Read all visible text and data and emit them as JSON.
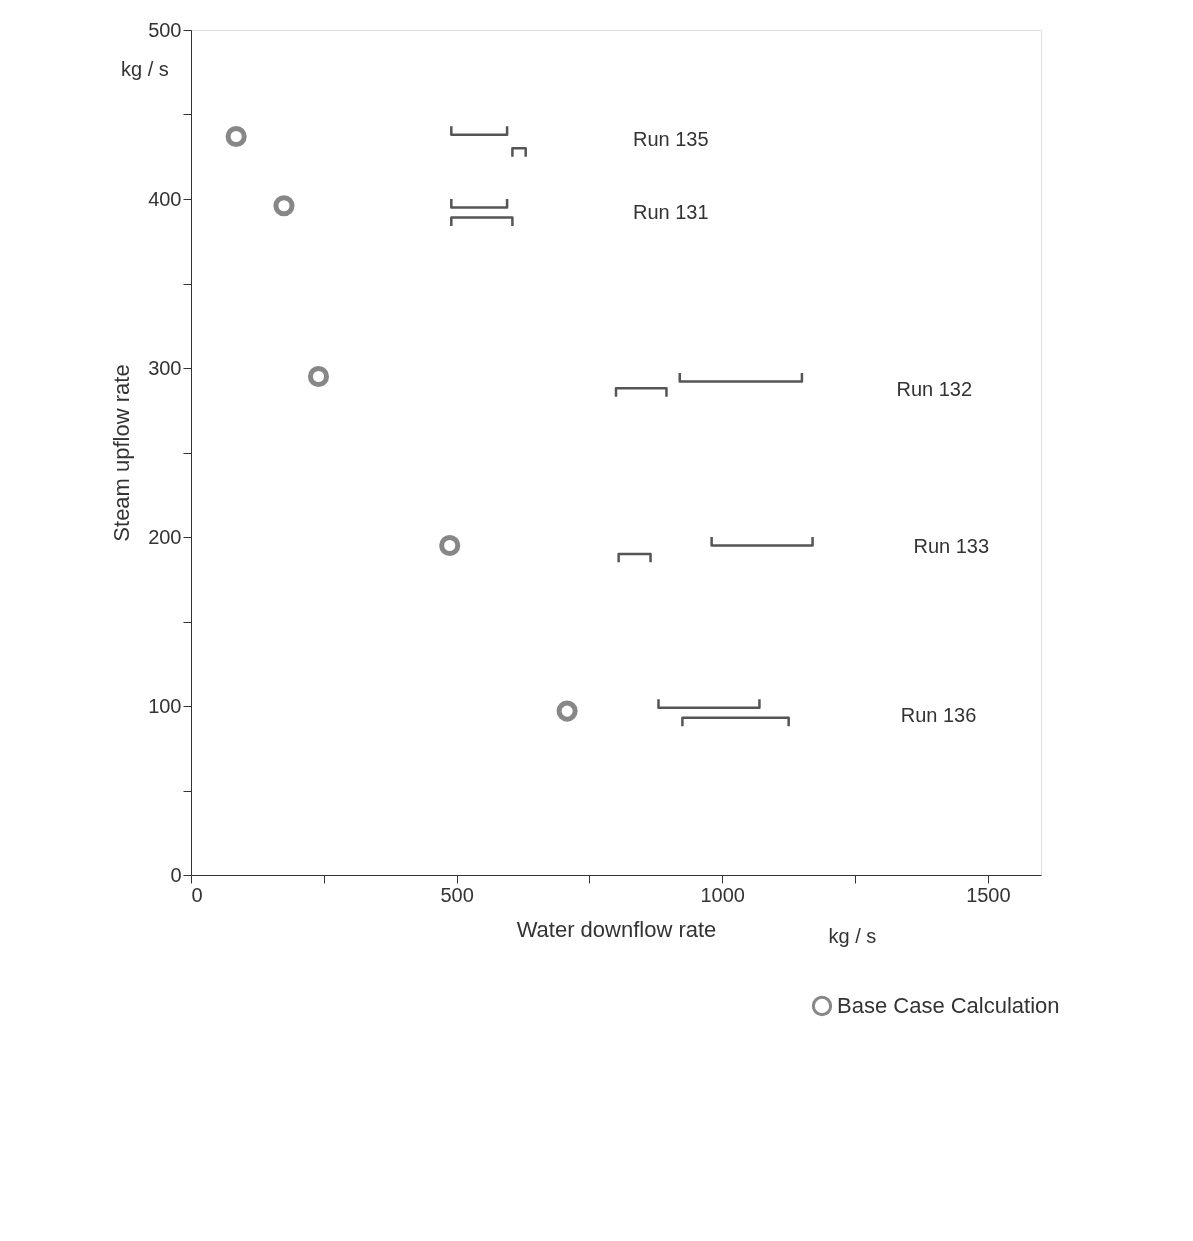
{
  "chart_data": {
    "type": "scatter",
    "xlabel": "Water downflow rate",
    "ylabel": "Steam upflow rate",
    "xlim": [
      0,
      1600
    ],
    "ylim": [
      0,
      500
    ],
    "xticks": [
      0,
      {
        "value": 250,
        "label": null
      },
      500,
      {
        "value": 750,
        "label": null
      },
      1000,
      {
        "value": 1250,
        "label": null
      },
      1500
    ],
    "yticks": [
      0,
      {
        "value": 50,
        "label": null
      },
      100,
      {
        "value": 150,
        "label": null
      },
      200,
      {
        "value": 250,
        "label": null
      },
      300,
      {
        "value": 350,
        "label": null
      },
      400,
      {
        "value": 450,
        "label": null
      },
      500
    ],
    "grid": false,
    "legend": "bottom right",
    "line_style": "solid",
    "series": [
      {
        "type": "line",
        "color": "#555555",
        "marker": "none",
        "x": [
          490,
          490,
          595,
          595
        ],
        "values": [
          443,
          438,
          438,
          443
        ]
      },
      {
        "type": "line",
        "color": "#555555",
        "marker": "none",
        "x": [
          605,
          605,
          630,
          630
        ],
        "values": [
          425,
          430,
          430,
          425
        ]
      },
      {
        "type": "line",
        "color": "#555555",
        "marker": "none",
        "x": [
          490,
          490,
          595,
          595
        ],
        "values": [
          400,
          395,
          395,
          400
        ]
      },
      {
        "type": "line",
        "color": "#555555",
        "marker": "none",
        "x": [
          490,
          490,
          605,
          605
        ],
        "values": [
          384,
          389,
          389,
          384
        ]
      },
      {
        "type": "line",
        "color": "#555555",
        "marker": "none",
        "x": [
          800,
          800,
          895,
          895
        ],
        "values": [
          283,
          288,
          288,
          283
        ]
      },
      {
        "type": "line",
        "color": "#555555",
        "marker": "none",
        "x": [
          920,
          920,
          1150,
          1150
        ],
        "values": [
          297,
          292,
          292,
          297
        ]
      },
      {
        "type": "line",
        "color": "#555555",
        "marker": "none",
        "x": [
          805,
          805,
          865,
          865
        ],
        "values": [
          185,
          190,
          190,
          185
        ]
      },
      {
        "type": "line",
        "color": "#555555",
        "marker": "none",
        "x": [
          980,
          980,
          1170,
          1170
        ],
        "values": [
          200,
          195,
          195,
          200
        ]
      },
      {
        "type": "line",
        "color": "#555555",
        "marker": "none",
        "x": [
          880,
          880,
          1070,
          1070
        ],
        "values": [
          104,
          99,
          99,
          104
        ]
      },
      {
        "type": "line",
        "color": "#555555",
        "marker": "none",
        "x": [
          925,
          925,
          1125,
          1125
        ],
        "values": [
          88,
          93,
          93,
          88
        ]
      },
      {
        "name": "Base Case Calculation",
        "color": "#555555",
        "marker": "circle",
        "x": [
          85,
          175,
          240,
          487,
          708
        ],
        "values": [
          437,
          396,
          295,
          195,
          97
        ]
      }
    ],
    "annotations": [
      "kg / s",
      "kg / s",
      "Run 135",
      "Run 131",
      "Run 132",
      "Run 133",
      "Run 136"
    ]
  }
}
